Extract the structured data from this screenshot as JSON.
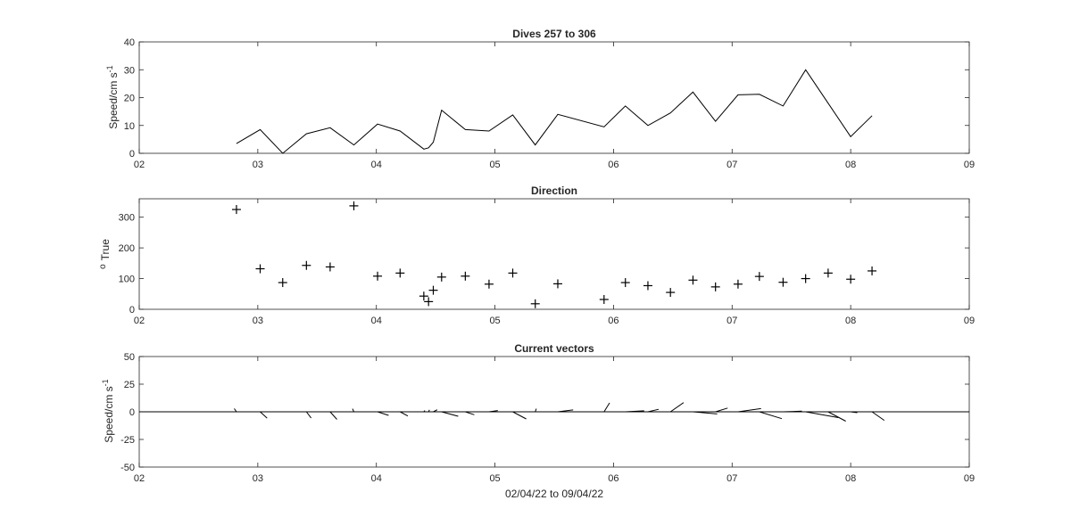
{
  "chart_data": [
    {
      "type": "line",
      "title": "Dives 257 to 306",
      "xlabel": "",
      "ylabel": "Speed/cm s",
      "ylabel_superscript": "-1",
      "xlim": [
        2,
        9
      ],
      "ylim": [
        0,
        40
      ],
      "xticks": [
        "02",
        "03",
        "04",
        "05",
        "06",
        "07",
        "08",
        "09"
      ],
      "yticks": [
        0,
        10,
        20,
        30,
        40
      ],
      "grid": false,
      "series": [
        {
          "color": "#000000",
          "x": [
            2.82,
            3.02,
            3.21,
            3.41,
            3.61,
            3.81,
            4.01,
            4.2,
            4.4,
            4.44,
            4.48,
            4.55,
            4.75,
            4.95,
            5.15,
            5.34,
            5.53,
            5.92,
            6.1,
            6.29,
            6.48,
            6.67,
            6.86,
            7.05,
            7.23,
            7.43,
            7.62,
            7.81,
            8.0,
            8.18
          ],
          "values": [
            3.5,
            8.5,
            0,
            7,
            9.2,
            3,
            10.5,
            8,
            1.5,
            2,
            4,
            15.5,
            8.5,
            8,
            13.8,
            3,
            14,
            9.5,
            17,
            10,
            14.5,
            22,
            11.5,
            21,
            21.2,
            17,
            30,
            18,
            6,
            13.5
          ]
        }
      ]
    },
    {
      "type": "scatter",
      "title": "Direction",
      "xlabel": "",
      "ylabel": "True",
      "ylabel_prefix": "o",
      "xlim": [
        2,
        9
      ],
      "ylim": [
        0,
        360
      ],
      "xticks": [
        "02",
        "03",
        "04",
        "05",
        "06",
        "07",
        "08",
        "09"
      ],
      "yticks": [
        0,
        100,
        200,
        300
      ],
      "grid": false,
      "marker": "+",
      "series": [
        {
          "color": "#000000",
          "x": [
            2.82,
            3.02,
            3.21,
            3.41,
            3.61,
            3.81,
            4.01,
            4.2,
            4.4,
            4.44,
            4.48,
            4.55,
            4.75,
            4.95,
            5.15,
            5.34,
            5.53,
            5.92,
            6.1,
            6.29,
            6.48,
            6.67,
            6.86,
            7.05,
            7.23,
            7.43,
            7.62,
            7.81,
            8.0,
            8.18
          ],
          "values": [
            325,
            132,
            87,
            143,
            138,
            337,
            108,
            118,
            43,
            25,
            62,
            105,
            108,
            82,
            118,
            18,
            83,
            32,
            87,
            77,
            55,
            95,
            73,
            82,
            107,
            88,
            100,
            118,
            98,
            125
          ]
        }
      ]
    },
    {
      "type": "vector",
      "title": "Current vectors",
      "xlabel": "02/04/22 to 09/04/22",
      "ylabel": "Speed/cm s",
      "ylabel_superscript": "-1",
      "xlim": [
        2,
        9
      ],
      "ylim": [
        -50,
        50
      ],
      "xticks": [
        "02",
        "03",
        "04",
        "05",
        "06",
        "07",
        "08",
        "09"
      ],
      "yticks": [
        50,
        25,
        0,
        -25,
        -50
      ],
      "grid": false,
      "zero_line": true,
      "x": [
        2.82,
        3.02,
        3.21,
        3.41,
        3.61,
        3.81,
        4.01,
        4.2,
        4.4,
        4.44,
        4.48,
        4.55,
        4.75,
        4.95,
        5.15,
        5.34,
        5.53,
        5.92,
        6.1,
        6.29,
        6.48,
        6.67,
        6.86,
        7.05,
        7.23,
        7.43,
        7.62,
        7.81,
        8.0,
        8.18
      ],
      "speed": [
        3.5,
        8.5,
        0,
        7,
        9.2,
        3,
        10.5,
        8,
        1.5,
        2,
        4,
        15.5,
        8.5,
        8,
        13.8,
        3,
        14,
        9.5,
        17,
        10,
        14.5,
        22,
        11.5,
        21,
        21.2,
        17,
        30,
        18,
        6,
        13.5
      ],
      "direction_deg_true": [
        325,
        132,
        87,
        143,
        138,
        337,
        108,
        118,
        43,
        25,
        62,
        105,
        108,
        82,
        118,
        18,
        83,
        32,
        87,
        77,
        55,
        95,
        73,
        82,
        107,
        88,
        100,
        118,
        98,
        125
      ]
    }
  ]
}
